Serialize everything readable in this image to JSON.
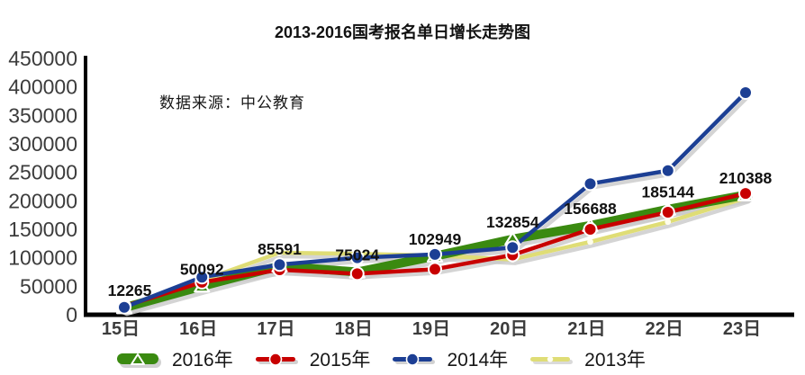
{
  "title": "2013-2016国考报名单日增长走势图",
  "source_note": "数据来源：中公教育",
  "chart_data": {
    "type": "line",
    "title": "2013-2016国考报名单日增长走势图",
    "annotation": "数据来源：中公教育",
    "categories": [
      "15日",
      "16日",
      "17日",
      "18日",
      "19日",
      "20日",
      "21日",
      "22日",
      "23日"
    ],
    "xlabel": "",
    "ylabel": "",
    "ylim": [
      0,
      450000
    ],
    "ytick_step": 50000,
    "yticks": [
      "0",
      "50000",
      "100000",
      "150000",
      "200000",
      "250000",
      "300000",
      "350000",
      "400000",
      "450000"
    ],
    "grid": false,
    "legend_position": "bottom",
    "series": [
      {
        "name": "2016年",
        "color": "#3A8A10",
        "marker": "triangle",
        "line_width": 10,
        "labeled": true,
        "values": [
          12265,
          50092,
          85591,
          75024,
          102949,
          132854,
          156688,
          185144,
          210388
        ]
      },
      {
        "name": "2015年",
        "color": "#C80000",
        "marker": "circle",
        "line_width": 4.5,
        "labeled": false,
        "values": [
          15000,
          57000,
          79000,
          72000,
          80000,
          105000,
          150000,
          180000,
          213000
        ]
      },
      {
        "name": "2014年",
        "color": "#1C3F94",
        "marker": "circle",
        "line_width": 4.5,
        "labeled": false,
        "values": [
          13000,
          66000,
          88000,
          100000,
          106000,
          118000,
          230000,
          253000,
          390000
        ]
      },
      {
        "name": "2013年",
        "color": "#DFDD76",
        "marker": "dot",
        "line_width": 4.5,
        "labeled": false,
        "values": [
          8000,
          60000,
          109000,
          107000,
          104000,
          97000,
          128000,
          163000,
          205000
        ]
      }
    ],
    "data_labels": [
      "12265",
      "50092",
      "85591",
      "75024",
      "102949",
      "132854",
      "156688",
      "185144",
      "210388"
    ]
  }
}
